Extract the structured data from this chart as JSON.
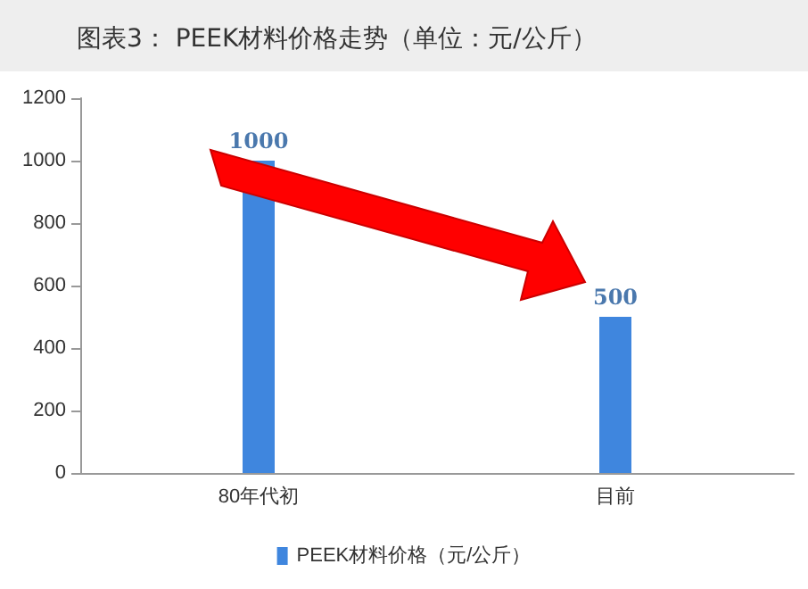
{
  "chart_data": {
    "type": "bar",
    "title": "图表3： PEEK材料价格走势（单位：元/公斤）",
    "categories": [
      "80年代初",
      "目前"
    ],
    "series": [
      {
        "name": "PEEK材料价格（元/公斤）",
        "color": "#3f86de",
        "values": [
          1000,
          500
        ]
      }
    ],
    "ylim": [
      0,
      1200
    ],
    "yticks": [
      0,
      200,
      400,
      600,
      800,
      1000,
      1200
    ],
    "data_labels": true,
    "grid": false,
    "legend": "bottom"
  }
}
